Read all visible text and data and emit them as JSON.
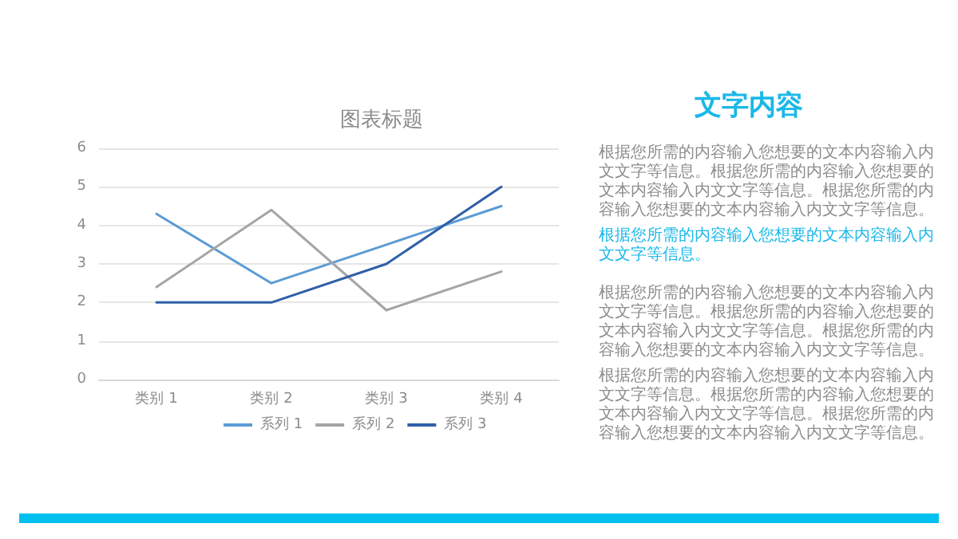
{
  "chart_data": {
    "type": "line",
    "title": "图表标题",
    "categories": [
      "类别 1",
      "类别 2",
      "类别 3",
      "类别 4"
    ],
    "series": [
      {
        "name": "系列 1",
        "color": "#5b9bd5",
        "values": [
          4.3,
          2.5,
          3.5,
          4.5
        ]
      },
      {
        "name": "系列 2",
        "color": "#a5a5a5",
        "values": [
          2.4,
          4.4,
          1.8,
          2.8
        ]
      },
      {
        "name": "系列 3",
        "color": "#2f5fa8",
        "values": [
          2,
          2,
          3,
          5
        ]
      }
    ],
    "ylim": [
      0,
      6
    ],
    "yticks": [
      0,
      1,
      2,
      3,
      4,
      5,
      6
    ],
    "grid": "y",
    "legend": "bottom",
    "marker": "none",
    "line_style": "solid",
    "annotations": [
      "文字内容",
      "根据您所需的内容输入您想要的文本内容输入内文文字等信息。根据您所需的内容输入您想要的文本内容输入内文文字等信息。根据您所需的内容输入您想要的文本内容输入内文文字等信息。",
      "根据您所需的内容输入您想要的文本内容输入内文文字等信息。",
      "根据您所需的内容输入您想要的文本内容输入内文文字等信息。根据您所需的内容输入您想要的文本内容输入内文文字等信息。根据您所需的内容输入您想要的文本内容输入内文文字等信息。",
      "根据您所需的内容输入您想要的文本内容输入内文文字等信息。根据您所需的内容输入您想要的文本内容输入内文文字等信息。根据您所需的内容输入您想要的文本内容输入内文文字等信息。"
    ]
  }
}
